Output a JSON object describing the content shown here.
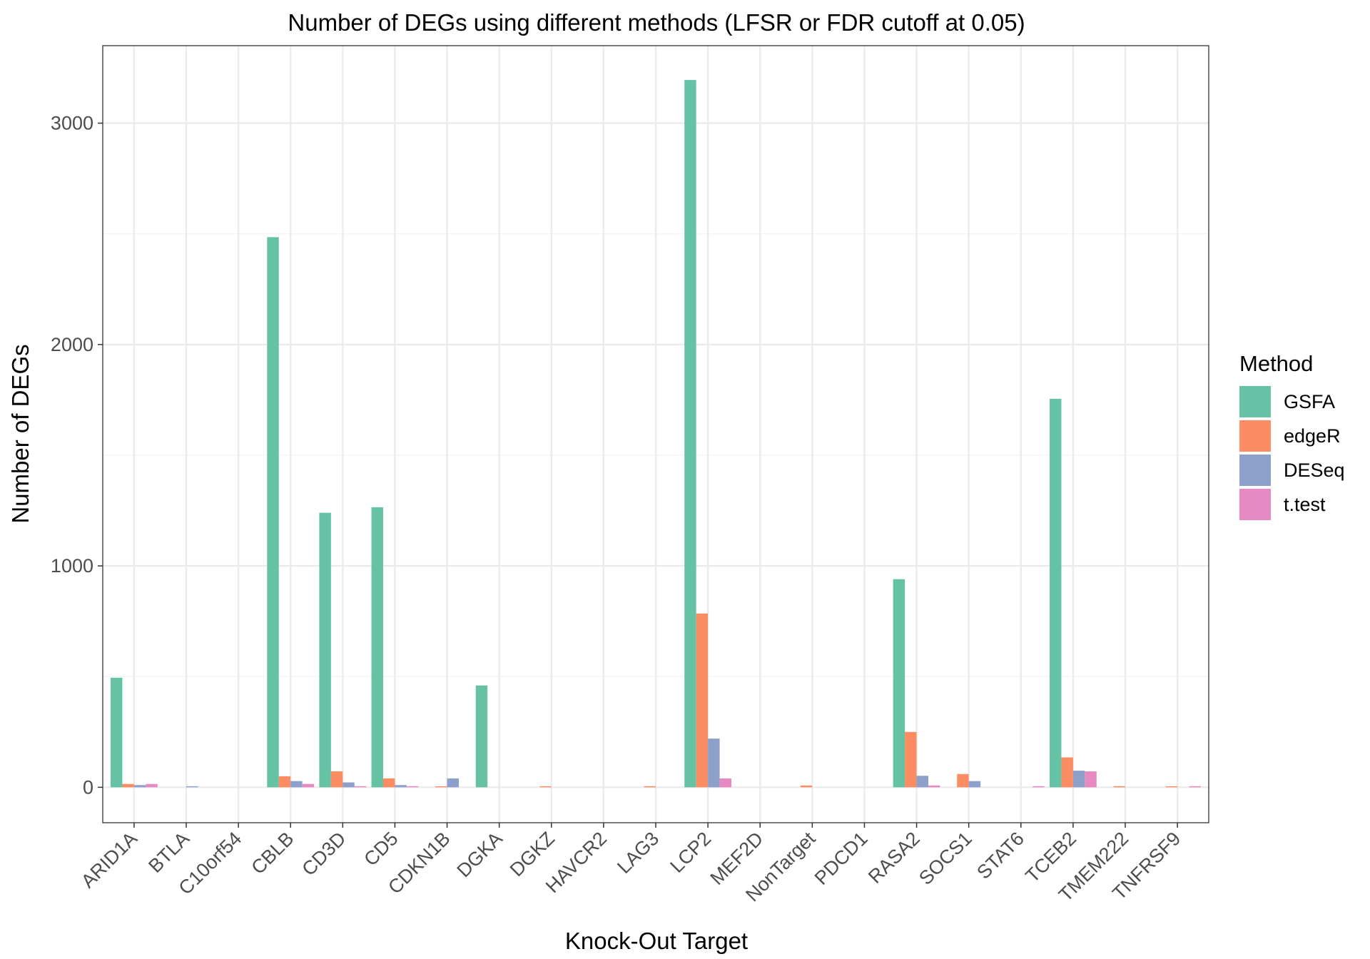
{
  "chart_data": {
    "type": "bar",
    "title": "Number of DEGs using different methods (LFSR or FDR cutoff at 0.05)",
    "xlabel": "Knock-Out Target",
    "ylabel": "Number of DEGs",
    "ylim": [
      -160,
      3350
    ],
    "yticks": [
      0,
      1000,
      2000,
      3000
    ],
    "grid": true,
    "legend": {
      "title": "Method",
      "position": "right"
    },
    "categories": [
      "ARID1A",
      "BTLA",
      "C10orf54",
      "CBLB",
      "CD3D",
      "CD5",
      "CDKN1B",
      "DGKA",
      "DGKZ",
      "HAVCR2",
      "LAG3",
      "LCP2",
      "MEF2D",
      "NonTarget",
      "PDCD1",
      "RASA2",
      "SOCS1",
      "STAT6",
      "TCEB2",
      "TMEM222",
      "TNFRSF9"
    ],
    "series": [
      {
        "name": "GSFA",
        "color": "#66c2a5",
        "values": [
          495,
          0,
          0,
          2485,
          1240,
          1265,
          0,
          460,
          0,
          0,
          0,
          3195,
          0,
          0,
          0,
          940,
          0,
          0,
          1755,
          0,
          0
        ]
      },
      {
        "name": "edgeR",
        "color": "#fc8d62",
        "values": [
          15,
          0,
          0,
          50,
          72,
          40,
          3,
          0,
          3,
          0,
          3,
          785,
          0,
          8,
          0,
          250,
          60,
          0,
          135,
          3,
          3
        ]
      },
      {
        "name": "DESeq",
        "color": "#8da0cb",
        "values": [
          10,
          3,
          0,
          28,
          22,
          10,
          40,
          0,
          0,
          0,
          0,
          220,
          0,
          0,
          0,
          52,
          28,
          0,
          75,
          0,
          0
        ]
      },
      {
        "name": "t.test",
        "color": "#e78ac3",
        "values": [
          15,
          0,
          0,
          15,
          5,
          5,
          0,
          0,
          0,
          0,
          0,
          40,
          0,
          0,
          0,
          8,
          0,
          3,
          72,
          0,
          3
        ]
      }
    ]
  }
}
